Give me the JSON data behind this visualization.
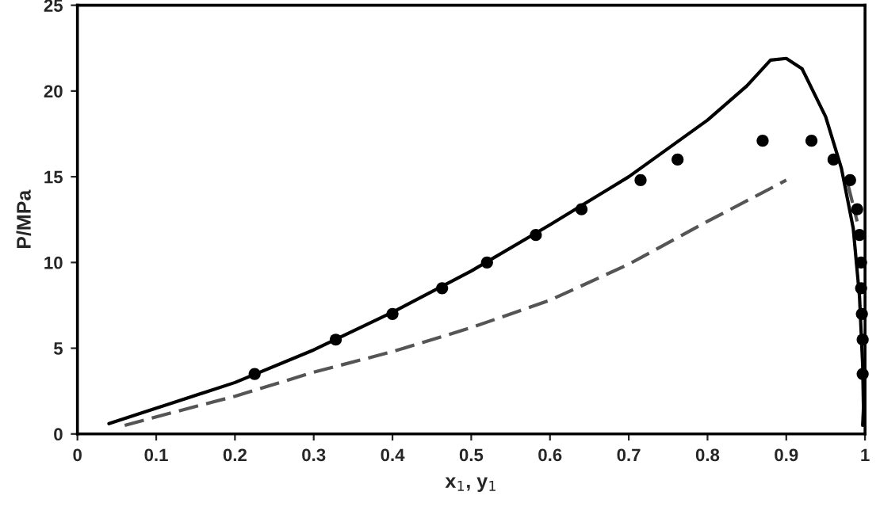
{
  "chart_data": {
    "type": "line",
    "xlabel": "x$_{1}$, y$_{1}$",
    "ylabel": "P/MPa",
    "xlim": [
      0,
      1
    ],
    "ylim": [
      0,
      25
    ],
    "xticks": [
      0,
      0.1,
      0.2,
      0.3,
      0.4,
      0.5,
      0.6,
      0.7,
      0.8,
      0.9,
      1
    ],
    "yticks": [
      0,
      5,
      10,
      15,
      20,
      25
    ],
    "grid": false,
    "legend": false,
    "series": [
      {
        "color": "#000000",
        "line_style": "solid",
        "marker": "none",
        "x": [
          0.04,
          0.1,
          0.2,
          0.3,
          0.4,
          0.5,
          0.6,
          0.7,
          0.8,
          0.85,
          0.88,
          0.9,
          0.92,
          0.95,
          0.97,
          0.985,
          0.993,
          0.997,
          0.998,
          0.997
        ],
        "values": [
          0.6,
          1.5,
          3.0,
          4.9,
          7.1,
          9.5,
          12.2,
          15.0,
          18.3,
          20.3,
          21.8,
          21.9,
          21.3,
          18.5,
          15.5,
          12.0,
          8.0,
          4.0,
          1.5,
          0.5
        ]
      },
      {
        "color": "#555555",
        "line_style": "dashed",
        "marker": "none",
        "x": [
          0.06,
          0.1,
          0.2,
          0.3,
          0.4,
          0.5,
          0.6,
          0.7,
          0.8,
          0.9
        ],
        "values": [
          0.5,
          1.0,
          2.2,
          3.6,
          4.8,
          6.2,
          7.8,
          9.9,
          12.4,
          14.8
        ]
      },
      {
        "color": "#555555",
        "line_style": "dashed",
        "marker": "none",
        "x": [
          0.978,
          0.99
        ],
        "values": [
          14.6,
          12.4
        ]
      },
      {
        "type": "scatter",
        "color": "#000000",
        "marker": "circle",
        "x": [
          0.225,
          0.328,
          0.4,
          0.463,
          0.52,
          0.582,
          0.64,
          0.715,
          0.762,
          0.87,
          0.932,
          0.96,
          0.981,
          0.99,
          0.993,
          0.995,
          0.995,
          0.996,
          0.997,
          0.997
        ],
        "values": [
          3.5,
          5.5,
          7.0,
          8.5,
          10.0,
          11.6,
          13.1,
          14.8,
          16.0,
          17.1,
          17.1,
          16.0,
          14.8,
          13.1,
          11.6,
          10.0,
          8.5,
          7.0,
          5.5,
          3.5
        ]
      }
    ]
  }
}
